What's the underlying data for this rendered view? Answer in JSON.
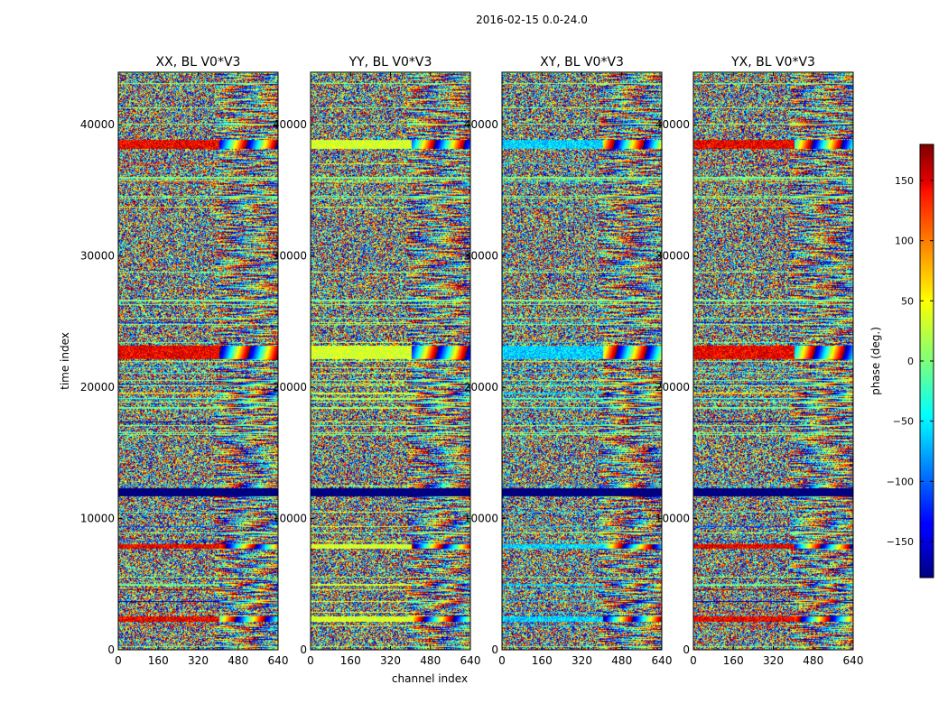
{
  "figure": {
    "suptitle": "2016-02-15 0.0-24.0"
  },
  "chart_data": {
    "type": "heatmap",
    "xlabel": "channel index",
    "ylabel": "time index",
    "x_range": [
      0,
      640
    ],
    "y_range": [
      0,
      44000
    ],
    "x_ticks": [
      0,
      160,
      320,
      480,
      640
    ],
    "y_ticks": [
      0,
      10000,
      20000,
      30000,
      40000
    ],
    "panels": [
      {
        "title": "XX, BL V0*V3"
      },
      {
        "title": "YY, BL V0*V3"
      },
      {
        "title": "XY, BL V0*V3"
      },
      {
        "title": "YX, BL V0*V3"
      }
    ],
    "colorbar": {
      "label": "phase (deg.)",
      "range": [
        -180,
        180
      ],
      "ticks": [
        150,
        100,
        50,
        0,
        -50,
        -100,
        -150
      ],
      "tick_labels": [
        "150",
        "100",
        "50",
        "0",
        "−50",
        "−100",
        "−150"
      ],
      "colormap": "jet"
    }
  }
}
